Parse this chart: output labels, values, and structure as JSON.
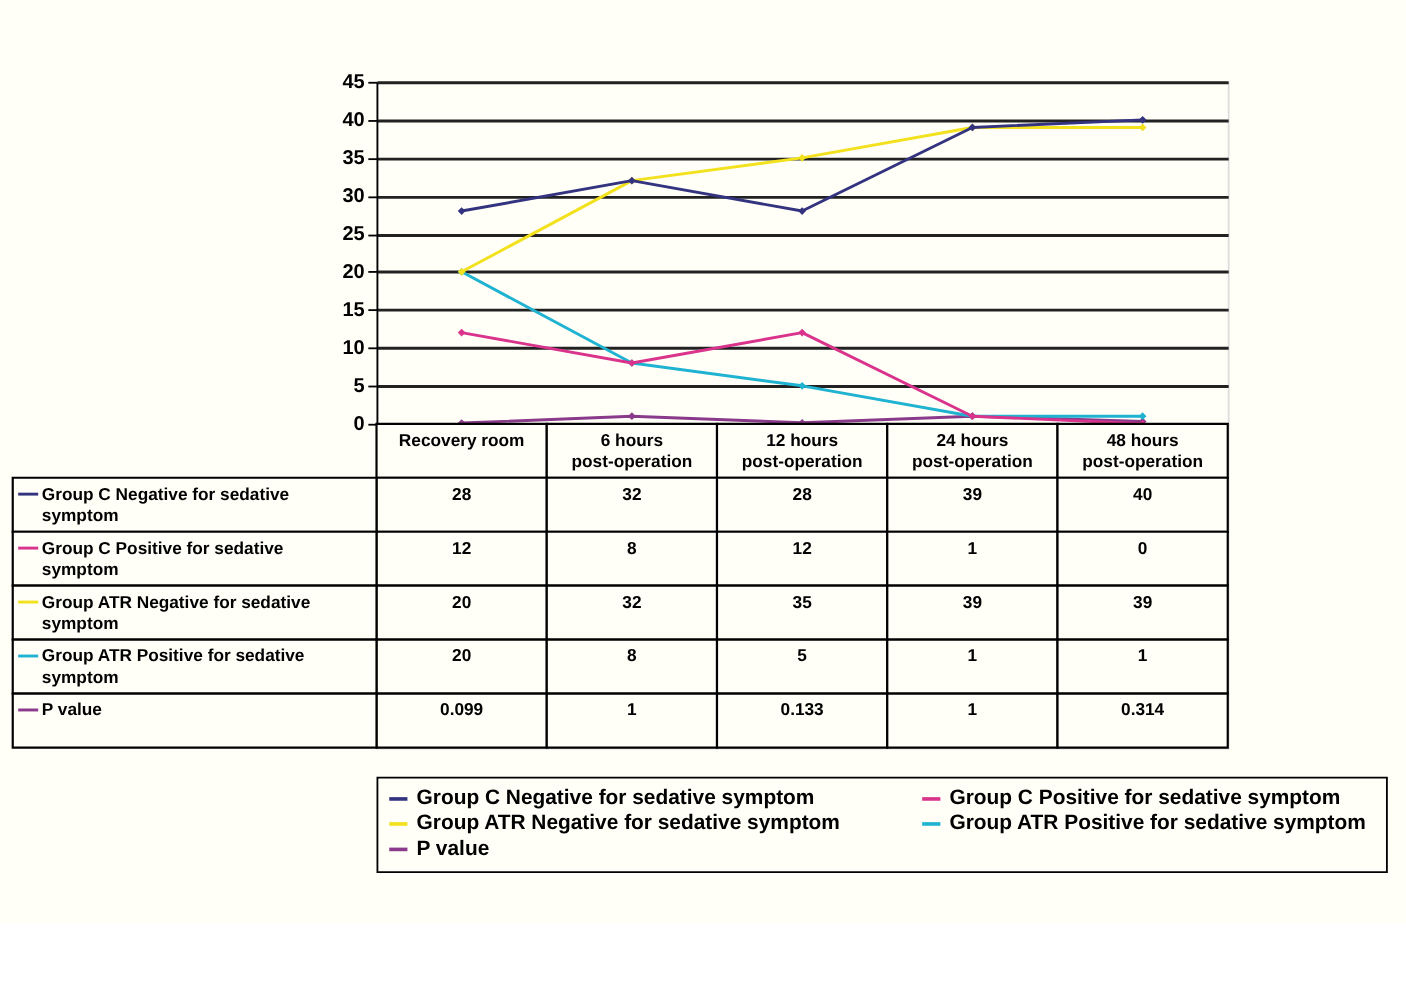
{
  "chart_data": {
    "type": "line",
    "categories": [
      "Recovery room",
      "6 hours post-operation",
      "12 hours post-operation",
      "24 hours post-operation",
      "48 hours post-operation"
    ],
    "series": [
      {
        "name": "Group C Negative for sedative symptom",
        "color": "#33337f",
        "values": [
          28,
          32,
          28,
          39,
          40
        ]
      },
      {
        "name": "Group C Positive  for sedative symptom",
        "color": "#d9338c",
        "values": [
          12,
          8,
          12,
          1,
          0
        ]
      },
      {
        "name": "Group ATR Negative for sedative symptom",
        "color": "#f2e11c",
        "values": [
          20,
          32,
          35,
          39,
          39
        ]
      },
      {
        "name": "Group ATR Positive  for sedative symptom",
        "color": "#1fb3d1",
        "values": [
          20,
          8,
          5,
          1,
          1
        ]
      },
      {
        "name": "P value",
        "color": "#8a3a8a",
        "values": [
          0.099,
          1,
          0.133,
          1,
          0.314
        ]
      }
    ],
    "ylim": [
      0,
      45
    ],
    "yticks": [
      0,
      5,
      10,
      15,
      20,
      25,
      30,
      35,
      40,
      45
    ],
    "grid": "y",
    "legend": "bottom",
    "marker": "diamond",
    "data_labels": true,
    "tick_labels": "y"
  }
}
